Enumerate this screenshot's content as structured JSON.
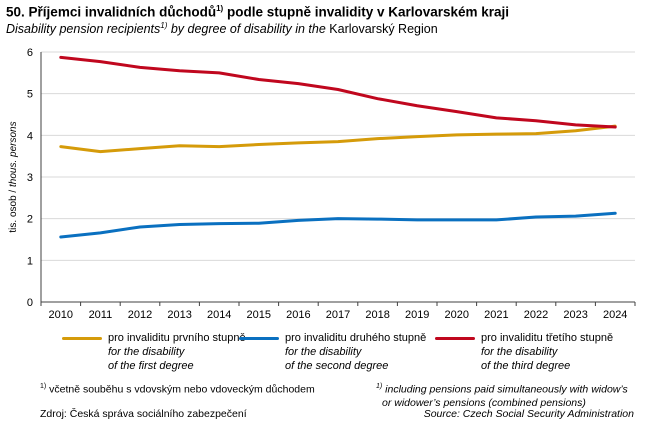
{
  "title": {
    "number": "50.",
    "cz_pre": "Příjemci invalidních důchodů",
    "sup": "1)",
    "cz_post": " podle stupně invalidity  v Karlovarském kraji",
    "en_pre": "Disability pension recipients",
    "en_post": " by degree of disability in the",
    "en_region": " Karlovarský Region"
  },
  "chart_data": {
    "type": "line",
    "title": "Příjemci invalidních důchodů podle stupně invalidity v Karlovarském kraji",
    "ylabel_cz": "tis. osob / ",
    "ylabel_en": "thous. persons",
    "xlabel": "",
    "ylim": [
      0,
      6
    ],
    "yticks": [
      "0",
      "1",
      "2",
      "3",
      "4",
      "5",
      "6"
    ],
    "grid": true,
    "legend_placement": "bottom",
    "categories": [
      "2010",
      "2011",
      "2012",
      "2013",
      "2014",
      "2015",
      "2016",
      "2017",
      "2018",
      "2019",
      "2020",
      "2021",
      "2022",
      "2023",
      "2024"
    ],
    "series": [
      {
        "name": "pro invaliditu prvního stupně",
        "name_en": [
          "for the disability",
          "of the first degree"
        ],
        "color": "#D59B0A",
        "values": [
          3.73,
          3.61,
          3.68,
          3.75,
          3.73,
          3.78,
          3.82,
          3.85,
          3.92,
          3.97,
          4.01,
          4.03,
          4.04,
          4.11,
          4.22
        ]
      },
      {
        "name": "pro invaliditu druhého stupně",
        "name_en": [
          "for the disability",
          "of the second degree"
        ],
        "color": "#0A70C0",
        "values": [
          1.56,
          1.66,
          1.8,
          1.86,
          1.88,
          1.89,
          1.96,
          2.0,
          1.99,
          1.97,
          1.97,
          1.97,
          2.04,
          2.06,
          2.13
        ]
      },
      {
        "name": "pro invaliditu třetího stupně",
        "name_en": [
          "for the disability",
          "of the third degree"
        ],
        "color": "#C0071E",
        "values": [
          5.87,
          5.77,
          5.63,
          5.55,
          5.5,
          5.34,
          5.24,
          5.1,
          4.88,
          4.71,
          4.57,
          4.42,
          4.35,
          4.25,
          4.2
        ]
      }
    ]
  },
  "footnotes": {
    "sup": "1)",
    "cz": " včetně souběhu s vdovským  nebo vdoveckým  důchodem",
    "en_1": " including pensions paid simultaneously with widow’s",
    "en_2": "or widower’s pensions (combined pensions)",
    "source_cz": "Zdroj: Česká správa sociálního zabezpečení",
    "source_en": "Source: Czech Social Security Administration"
  }
}
